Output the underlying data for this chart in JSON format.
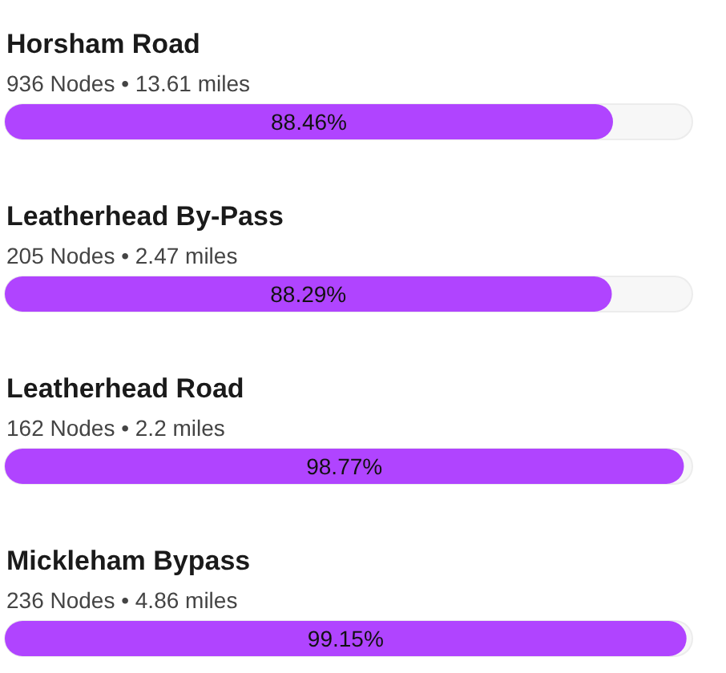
{
  "chart_data": {
    "type": "bar",
    "orientation": "horizontal",
    "categories": [
      "Horsham Road",
      "Leatherhead By-Pass",
      "Leatherhead Road",
      "Mickleham Bypass"
    ],
    "values": [
      88.46,
      88.29,
      98.77,
      99.15
    ],
    "value_labels": [
      "88.46%",
      "88.29%",
      "98.77%",
      "99.15%"
    ],
    "color": "#b044ff",
    "xlim": [
      0,
      100
    ],
    "annotations": [
      "936 Nodes • 13.61 miles",
      "205 Nodes • 2.47 miles",
      "162 Nodes • 2.2 miles",
      "236 Nodes • 4.86 miles"
    ]
  }
}
